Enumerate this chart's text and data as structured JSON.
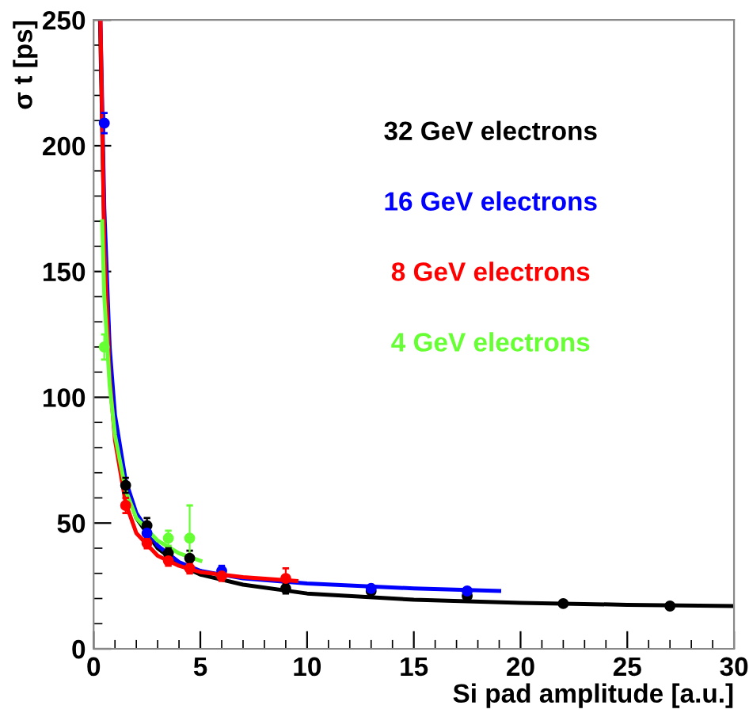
{
  "chart_data": {
    "type": "scatter",
    "xlabel": "Si pad amplitude [a.u.]",
    "ylabel": "σ t [ps]",
    "xlim": [
      0,
      30
    ],
    "ylim": [
      0,
      250
    ],
    "xticks": [
      0,
      5,
      10,
      15,
      20,
      25,
      30
    ],
    "yticks": [
      0,
      50,
      100,
      150,
      200,
      250
    ],
    "grid": false,
    "marker": "circle",
    "series": [
      {
        "name": "32 GeV electrons",
        "color": "#000000",
        "x": [
          1.5,
          2.5,
          3.5,
          4.5,
          9,
          13,
          17.5,
          22,
          27
        ],
        "values": [
          65,
          49,
          38,
          36,
          24,
          23,
          21,
          18,
          17
        ],
        "errors": [
          3,
          3,
          2,
          3,
          2,
          1,
          1,
          1,
          1
        ]
      },
      {
        "name": "16 GeV electrons",
        "color": "#0000ff",
        "x": [
          0.5,
          2.5,
          6,
          13,
          17.5
        ],
        "values": [
          209,
          46,
          31,
          24,
          23
        ],
        "errors": [
          4,
          3,
          2,
          1,
          1
        ]
      },
      {
        "name": "8 GeV electrons",
        "color": "#ff0000",
        "x": [
          1.5,
          2.5,
          3.5,
          4.5,
          6,
          9
        ],
        "values": [
          57,
          42,
          35,
          32,
          29,
          28
        ],
        "errors": [
          3,
          2,
          2,
          2,
          2,
          4
        ]
      },
      {
        "name": "4 GeV electrons",
        "color": "#66ff33",
        "x": [
          0.5,
          3.5,
          4.5
        ],
        "values": [
          120,
          44,
          44
        ],
        "errors": [
          5,
          3,
          13
        ]
      },
      {
        "type": "line",
        "marker": "none",
        "color": "#000000",
        "x": [
          0.3,
          0.5,
          0.75,
          1,
          1.5,
          2,
          3,
          4,
          5,
          7,
          10,
          15,
          20,
          25,
          30
        ],
        "values": [
          250,
          166,
          116,
          90,
          65,
          52,
          40,
          33.5,
          29.5,
          25.5,
          22,
          19.5,
          18.3,
          17.5,
          17
        ]
      },
      {
        "type": "line",
        "marker": "none",
        "color": "#0000ff",
        "x": [
          0.32,
          0.5,
          0.75,
          1,
          1.5,
          2,
          3,
          4,
          5,
          7,
          10,
          15,
          19
        ],
        "values": [
          250,
          175,
          120,
          93,
          67,
          54,
          41,
          34.5,
          31,
          28,
          26,
          24,
          23
        ]
      },
      {
        "type": "line",
        "marker": "none",
        "color": "#ff0000",
        "x": [
          0.32,
          0.5,
          0.75,
          1,
          1.5,
          2,
          3,
          4,
          5,
          7,
          9.5
        ],
        "values": [
          250,
          160,
          108,
          83,
          58,
          46,
          37,
          33,
          30.5,
          28.5,
          27
        ]
      },
      {
        "type": "line",
        "marker": "none",
        "color": "#66ff33",
        "x": [
          0.4,
          0.5,
          0.75,
          1,
          1.5,
          2,
          3,
          4,
          5
        ],
        "values": [
          170,
          140,
          105,
          85,
          63,
          52,
          43,
          38,
          35
        ]
      }
    ]
  }
}
